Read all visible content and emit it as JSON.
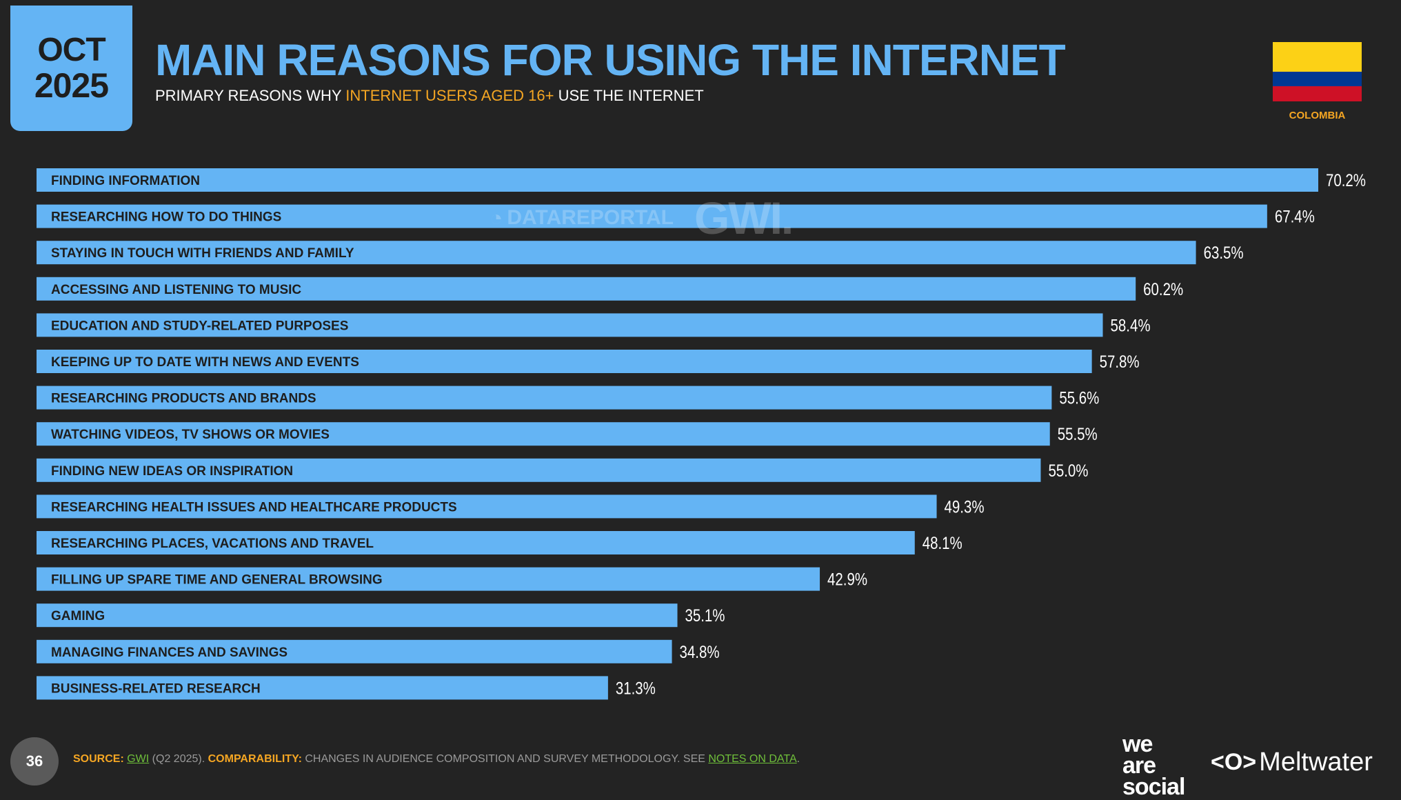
{
  "badge": {
    "month": "OCT",
    "year": "2025"
  },
  "header": {
    "title": "MAIN REASONS FOR USING THE INTERNET",
    "subtitle_pre": "PRIMARY REASONS WHY ",
    "subtitle_highlight": "INTERNET USERS AGED 16+",
    "subtitle_post": " USE THE INTERNET"
  },
  "country": {
    "name": "COLOMBIA",
    "flag_colors": [
      "#fcd116",
      "#003893",
      "#ce1126"
    ]
  },
  "watermark": {
    "datareportal": "DATAREPORTAL",
    "gwi": "GWI."
  },
  "colors": {
    "accent": "#64b4f4",
    "bar": "#64b4f4",
    "bar_label": "#1e1e1e",
    "value_label": "#ffffff",
    "highlight": "#f5a623",
    "background": "#232323"
  },
  "chart_data": {
    "type": "bar",
    "orientation": "horizontal",
    "categories": [
      "FINDING INFORMATION",
      "RESEARCHING HOW TO DO THINGS",
      "STAYING IN TOUCH WITH FRIENDS AND FAMILY",
      "ACCESSING AND LISTENING TO MUSIC",
      "EDUCATION AND STUDY-RELATED PURPOSES",
      "KEEPING UP TO DATE WITH NEWS AND EVENTS",
      "RESEARCHING PRODUCTS AND BRANDS",
      "WATCHING VIDEOS, TV SHOWS OR MOVIES",
      "FINDING NEW IDEAS OR INSPIRATION",
      "RESEARCHING HEALTH ISSUES AND HEALTHCARE PRODUCTS",
      "RESEARCHING PLACES, VACATIONS AND TRAVEL",
      "FILLING UP SPARE TIME AND GENERAL BROWSING",
      "GAMING",
      "MANAGING FINANCES AND SAVINGS",
      "BUSINESS-RELATED RESEARCH"
    ],
    "values": [
      70.2,
      67.4,
      63.5,
      60.2,
      58.4,
      57.8,
      55.6,
      55.5,
      55.0,
      49.3,
      48.1,
      42.9,
      35.1,
      34.8,
      31.3
    ],
    "value_labels": [
      "70.2%",
      "67.4%",
      "63.5%",
      "60.2%",
      "58.4%",
      "57.8%",
      "55.6%",
      "55.5%",
      "55.0%",
      "49.3%",
      "48.1%",
      "42.9%",
      "35.1%",
      "34.8%",
      "31.3%"
    ],
    "xlim": [
      0,
      70.2
    ],
    "grid": false,
    "legend": "none"
  },
  "footer": {
    "page_number": "36",
    "source_label": "SOURCE:",
    "source_link": "GWI",
    "source_detail": " (Q2 2025). ",
    "comparability_label": "COMPARABILITY:",
    "comparability_text": " CHANGES IN AUDIENCE COMPOSITION AND SURVEY METHODOLOGY. SEE ",
    "notes_link": "NOTES ON DATA",
    "end": "."
  },
  "brands": {
    "we_are_social_1": "we",
    "we_are_social_2": "are",
    "we_are_social_3": "social",
    "meltwater_icon": "<O>",
    "meltwater": "Meltwater"
  }
}
